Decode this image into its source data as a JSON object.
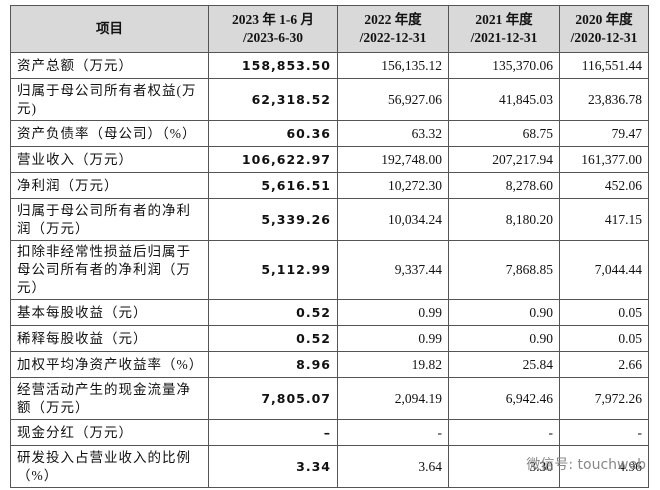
{
  "table": {
    "header": [
      [
        "项目"
      ],
      [
        "2023 年 1-6 月",
        "/2023-6-30"
      ],
      [
        "2022 年度",
        "/2022-12-31"
      ],
      [
        "2021 年度",
        "/2021-12-31"
      ],
      [
        "2020 年度",
        "/2020-12-31"
      ]
    ],
    "rows": [
      [
        "资产总额（万元）",
        "158,853.50",
        "156,135.12",
        "135,370.06",
        "116,551.44"
      ],
      [
        "归属于母公司所有者权益(万元)",
        "62,318.52",
        "56,927.06",
        "41,845.03",
        "23,836.78"
      ],
      [
        "资产负债率（母公司）（%）",
        "60.36",
        "63.32",
        "68.75",
        "79.47"
      ],
      [
        "营业收入（万元）",
        "106,622.97",
        "192,748.00",
        "207,217.94",
        "161,377.00"
      ],
      [
        "净利润（万元）",
        "5,616.51",
        "10,272.30",
        "8,278.60",
        "452.06"
      ],
      [
        "归属于母公司所有者的净利润（万元）",
        "5,339.26",
        "10,034.24",
        "8,180.20",
        "417.15"
      ],
      [
        "扣除非经常性损益后归属于母公司所有者的净利润（万元）",
        "5,112.99",
        "9,337.44",
        "7,868.85",
        "7,044.44"
      ],
      [
        "基本每股收益（元）",
        "0.52",
        "0.99",
        "0.90",
        "0.05"
      ],
      [
        "稀释每股收益（元）",
        "0.52",
        "0.99",
        "0.90",
        "0.05"
      ],
      [
        "加权平均净资产收益率（%）",
        "8.96",
        "19.82",
        "25.84",
        "2.66"
      ],
      [
        "经营活动产生的现金流量净额（万元）",
        "7,805.07",
        "2,094.19",
        "6,942.46",
        "7,972.26"
      ],
      [
        "现金分红（万元）",
        "–",
        "-",
        "-",
        "-"
      ],
      [
        "研发投入占营业收入的比例（%）",
        "3.34",
        "3.64",
        "3.30",
        "4.96"
      ]
    ]
  },
  "watermark": "微信号: touchweb"
}
